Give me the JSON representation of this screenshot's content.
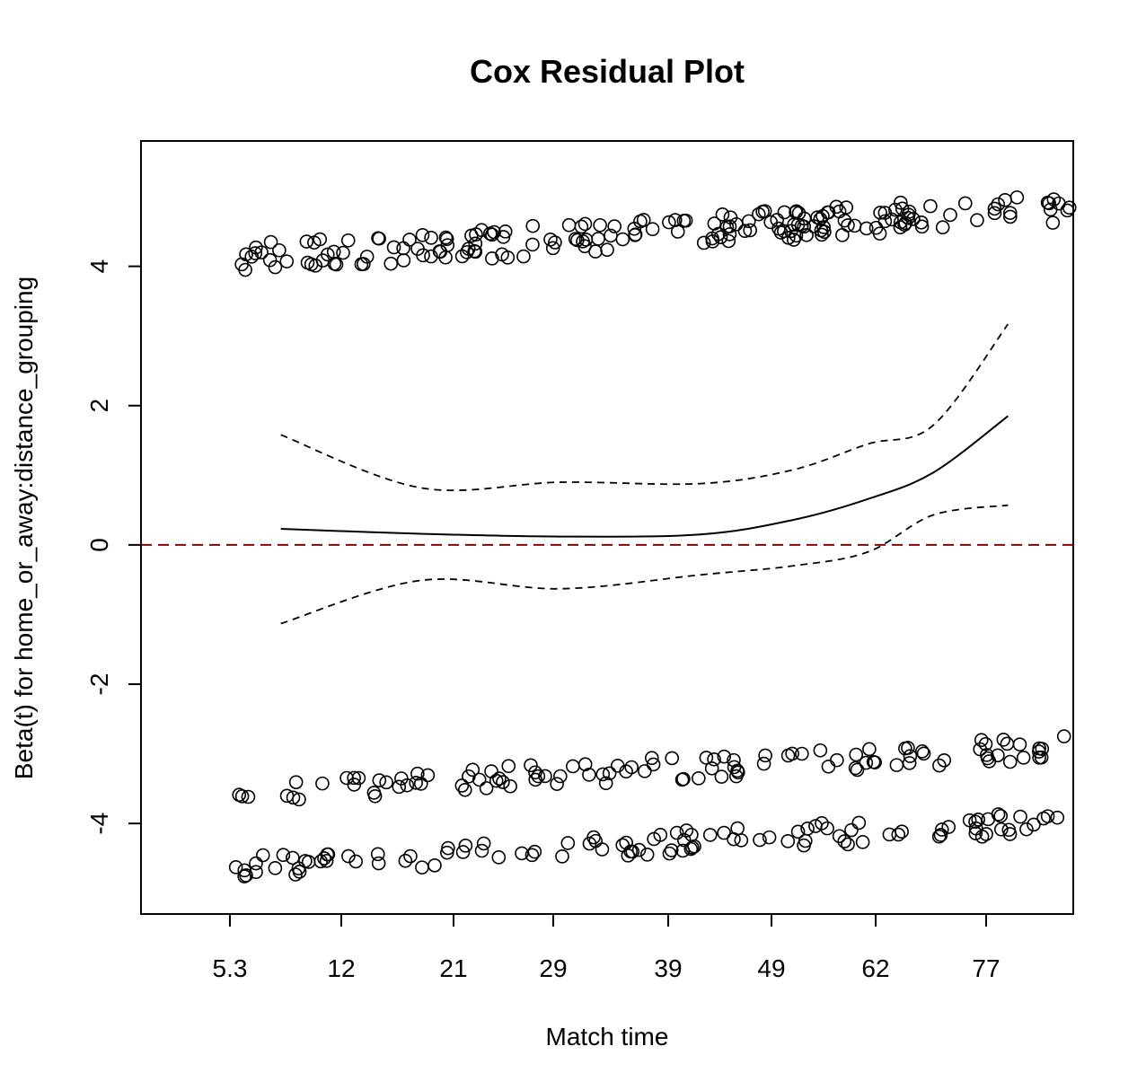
{
  "chart_data": {
    "type": "scatter",
    "title": "Cox Residual Plot",
    "xlabel": "Match time",
    "ylabel": "Beta(t) for home_or_away:distance_grouping",
    "x_ticks": [
      "5.3",
      "12",
      "21",
      "29",
      "39",
      "49",
      "62",
      "77"
    ],
    "y_ticks": [
      -4,
      -2,
      0,
      2,
      4
    ],
    "ylim": [
      -5.3,
      5.8
    ],
    "xlim": [
      0,
      10
    ],
    "grid": false,
    "legend": "none",
    "reference_line": {
      "y": 0,
      "style": "dashed",
      "color": "#8b0000"
    },
    "smooth": {
      "x": [
        1.5,
        3.0,
        4.5,
        6.0,
        7.0,
        7.8,
        8.5,
        9.3
      ],
      "fit": [
        0.23,
        0.16,
        0.12,
        0.15,
        0.36,
        0.66,
        1.04,
        1.85
      ],
      "upper": [
        1.58,
        0.82,
        0.9,
        0.88,
        1.08,
        1.45,
        1.72,
        3.17
      ],
      "lower": [
        -1.13,
        -0.51,
        -0.63,
        -0.43,
        -0.3,
        -0.1,
        0.43,
        0.57
      ]
    },
    "clusters": [
      {
        "name": "upper",
        "count": 190,
        "x_min": 1.0,
        "x_max": 10.0,
        "y_start": 4.1,
        "y_end": 4.85,
        "spread": 0.22
      },
      {
        "name": "middle",
        "count": 110,
        "x_min": 1.0,
        "x_max": 10.0,
        "y_start": -3.55,
        "y_end": -2.9,
        "spread": 0.17
      },
      {
        "name": "lower",
        "count": 110,
        "x_min": 1.0,
        "x_max": 10.0,
        "y_start": -4.62,
        "y_end": -3.95,
        "spread": 0.17
      }
    ],
    "colors": {
      "points": "#000000",
      "lines": "#000000",
      "reference": "#8b0000"
    }
  }
}
